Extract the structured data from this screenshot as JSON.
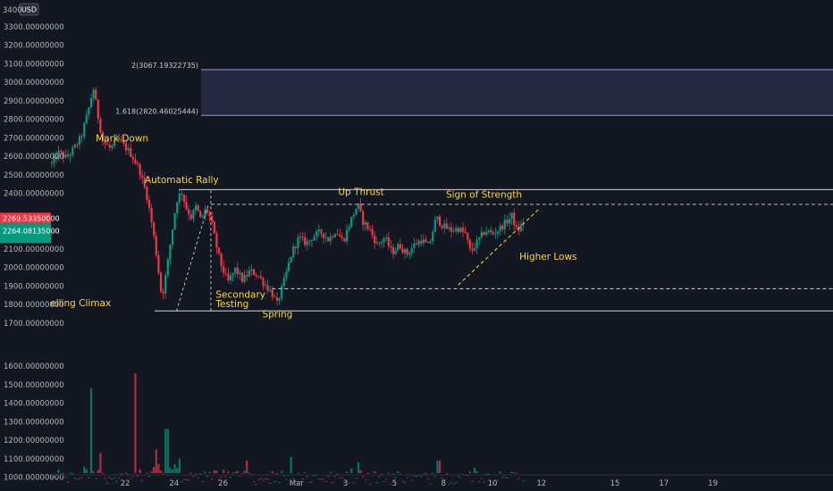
{
  "chart_data": {
    "type": "candlestick",
    "currency": "USD",
    "price_axis": {
      "range": [
        1700,
        3400
      ],
      "tick_labels": [
        {
          "value": 3400,
          "label": "3400"
        },
        {
          "value": 3300,
          "label": "3300.00000000"
        },
        {
          "value": 3200,
          "label": "3200.00000000"
        },
        {
          "value": 3100,
          "label": "3100.00000000"
        },
        {
          "value": 3000,
          "label": "3000.00000000"
        },
        {
          "value": 2900,
          "label": "2900.00000000"
        },
        {
          "value": 2800,
          "label": "2800.00000000"
        },
        {
          "value": 2700,
          "label": "2700.00000000"
        },
        {
          "value": 2600,
          "label": "2600.00000000"
        },
        {
          "value": 2500,
          "label": "2500.00000000"
        },
        {
          "value": 2400,
          "label": "2400.00000000"
        },
        {
          "value": 2100,
          "label": "2100.00000000"
        },
        {
          "value": 2000,
          "label": "2000.00000000"
        },
        {
          "value": 1900,
          "label": "1900.00000000"
        },
        {
          "value": 1800,
          "label": "1800.00000000"
        },
        {
          "value": 1700,
          "label": "1700.00000000"
        }
      ]
    },
    "volume_axis": {
      "tick_labels": [
        {
          "value": 1600,
          "label": "1600.00000000"
        },
        {
          "value": 1500,
          "label": "1500.00000000"
        },
        {
          "value": 1400,
          "label": "1400.00000000"
        },
        {
          "value": 1300,
          "label": "1300.00000000"
        },
        {
          "value": 1200,
          "label": "1200.00000000"
        },
        {
          "value": 1100,
          "label": "1100.00000000"
        },
        {
          "value": 1000,
          "label": "1000.00000000"
        }
      ]
    },
    "time_axis": {
      "ticks": [
        {
          "day": 22,
          "label": "22"
        },
        {
          "day": 24,
          "label": "24"
        },
        {
          "day": 26,
          "label": "26"
        },
        {
          "day": 29,
          "label": "Mar"
        },
        {
          "day": 31,
          "label": "3"
        },
        {
          "day": 33,
          "label": "5"
        },
        {
          "day": 35,
          "label": "8"
        },
        {
          "day": 37,
          "label": "10"
        },
        {
          "day": 39,
          "label": "12"
        },
        {
          "day": 42,
          "label": "15"
        },
        {
          "day": 44,
          "label": "17"
        },
        {
          "day": 46,
          "label": "19"
        }
      ]
    },
    "price_path": [
      {
        "d": 19.0,
        "p": 2560
      },
      {
        "d": 19.3,
        "p": 2620
      },
      {
        "d": 19.6,
        "p": 2590
      },
      {
        "d": 19.9,
        "p": 2640
      },
      {
        "d": 20.2,
        "p": 2700
      },
      {
        "d": 20.5,
        "p": 2850
      },
      {
        "d": 20.7,
        "p": 2970
      },
      {
        "d": 20.9,
        "p": 2810
      },
      {
        "d": 21.1,
        "p": 2680
      },
      {
        "d": 21.4,
        "p": 2640
      },
      {
        "d": 21.7,
        "p": 2690
      },
      {
        "d": 22.0,
        "p": 2650
      },
      {
        "d": 22.3,
        "p": 2600
      },
      {
        "d": 22.6,
        "p": 2520
      },
      {
        "d": 22.9,
        "p": 2380
      },
      {
        "d": 23.1,
        "p": 2230
      },
      {
        "d": 23.3,
        "p": 2050
      },
      {
        "d": 23.5,
        "p": 1830
      },
      {
        "d": 23.7,
        "p": 1990
      },
      {
        "d": 23.9,
        "p": 2180
      },
      {
        "d": 24.1,
        "p": 2360
      },
      {
        "d": 24.3,
        "p": 2410
      },
      {
        "d": 24.5,
        "p": 2320
      },
      {
        "d": 24.7,
        "p": 2270
      },
      {
        "d": 24.9,
        "p": 2330
      },
      {
        "d": 25.1,
        "p": 2250
      },
      {
        "d": 25.3,
        "p": 2320
      },
      {
        "d": 25.5,
        "p": 2260
      },
      {
        "d": 25.7,
        "p": 2130
      },
      {
        "d": 25.9,
        "p": 2020
      },
      {
        "d": 26.2,
        "p": 1920
      },
      {
        "d": 26.5,
        "p": 1990
      },
      {
        "d": 26.8,
        "p": 1930
      },
      {
        "d": 27.1,
        "p": 1980
      },
      {
        "d": 27.4,
        "p": 1960
      },
      {
        "d": 27.7,
        "p": 1910
      },
      {
        "d": 28.0,
        "p": 1860
      },
      {
        "d": 28.2,
        "p": 1800
      },
      {
        "d": 28.5,
        "p": 1930
      },
      {
        "d": 28.8,
        "p": 2080
      },
      {
        "d": 29.1,
        "p": 2160
      },
      {
        "d": 29.4,
        "p": 2130
      },
      {
        "d": 29.7,
        "p": 2170
      },
      {
        "d": 30.0,
        "p": 2190
      },
      {
        "d": 30.3,
        "p": 2150
      },
      {
        "d": 30.6,
        "p": 2200
      },
      {
        "d": 30.9,
        "p": 2140
      },
      {
        "d": 31.2,
        "p": 2250
      },
      {
        "d": 31.5,
        "p": 2340
      },
      {
        "d": 31.7,
        "p": 2250
      },
      {
        "d": 32.0,
        "p": 2200
      },
      {
        "d": 32.3,
        "p": 2120
      },
      {
        "d": 32.6,
        "p": 2160
      },
      {
        "d": 32.9,
        "p": 2080
      },
      {
        "d": 33.2,
        "p": 2120
      },
      {
        "d": 33.5,
        "p": 2070
      },
      {
        "d": 33.8,
        "p": 2120
      },
      {
        "d": 34.1,
        "p": 2150
      },
      {
        "d": 34.4,
        "p": 2110
      },
      {
        "d": 34.7,
        "p": 2270
      },
      {
        "d": 35.0,
        "p": 2220
      },
      {
        "d": 35.3,
        "p": 2200
      },
      {
        "d": 35.6,
        "p": 2210
      },
      {
        "d": 35.9,
        "p": 2180
      },
      {
        "d": 36.1,
        "p": 2080
      },
      {
        "d": 36.4,
        "p": 2140
      },
      {
        "d": 36.7,
        "p": 2200
      },
      {
        "d": 37.0,
        "p": 2180
      },
      {
        "d": 37.3,
        "p": 2210
      },
      {
        "d": 37.6,
        "p": 2250
      },
      {
        "d": 37.8,
        "p": 2280
      },
      {
        "d": 38.0,
        "p": 2190
      },
      {
        "d": 38.2,
        "p": 2230
      },
      {
        "d": 38.3,
        "p": 2260
      }
    ],
    "volume_bars": [
      {
        "d": 20.6,
        "v": 1480
      },
      {
        "d": 22.4,
        "v": 1560
      },
      {
        "d": 23.7,
        "v": 1260
      },
      {
        "d": 21.0,
        "v": 1130
      },
      {
        "d": 23.3,
        "v": 1150
      },
      {
        "d": 24.2,
        "v": 1100
      },
      {
        "d": 27.0,
        "v": 1090
      },
      {
        "d": 28.8,
        "v": 1110
      },
      {
        "d": 31.5,
        "v": 1080
      },
      {
        "d": 34.8,
        "v": 1090
      },
      {
        "d": 36.3,
        "v": 1050
      }
    ],
    "last_price": {
      "label": "2269.53350000",
      "color": "#f23645"
    },
    "prev_price": {
      "label": "2264.08135000",
      "color": "#089981"
    },
    "levels": {
      "resistance": 2420,
      "mid_dashed": 2340,
      "spring_dashed": 1885,
      "support": 1765
    },
    "fib_zone": {
      "upper": {
        "value": 3067.19322735,
        "label": "2(3067.19322735)"
      },
      "lower": {
        "value": 2820.46025444,
        "label": "1.618(2820.46025444)"
      }
    },
    "annotations": [
      {
        "text": "Mark Down",
        "d": 20.8,
        "p": 2680
      },
      {
        "text": "Automatic Rally",
        "d": 22.8,
        "p": 2455
      },
      {
        "text": "Up Thrust",
        "d": 30.7,
        "p": 2390
      },
      {
        "text": "Sign of Strength",
        "d": 35.1,
        "p": 2375
      },
      {
        "text": "Higher Lows",
        "d": 38.1,
        "p": 2040
      },
      {
        "text": "Secondary",
        "d": 25.7,
        "p": 1835
      },
      {
        "text": "Testing",
        "d": 25.7,
        "p": 1785
      },
      {
        "text": "Spring",
        "d": 27.6,
        "p": 1730
      },
      {
        "text": "Selling Climax",
        "d": 18.7,
        "p": 1790
      }
    ],
    "colors": {
      "background": "#131722",
      "up": "#089981",
      "down": "#f23645",
      "annotation": "#f7d54a",
      "level_line": "#d1d4dc",
      "fib_fill": "#2a2a45",
      "fib_line": "#9b8fe0"
    }
  }
}
